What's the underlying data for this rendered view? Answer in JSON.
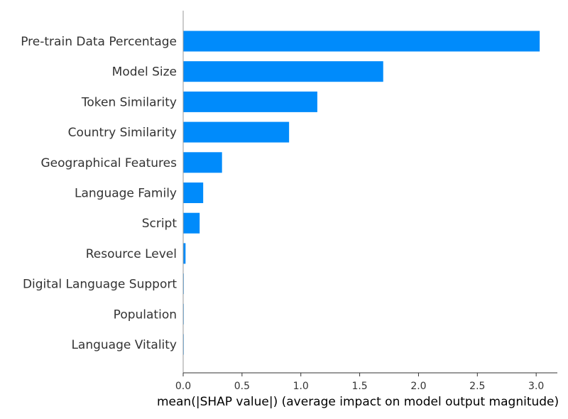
{
  "chart_data": {
    "type": "bar",
    "orientation": "horizontal",
    "categories": [
      "Pre-train Data Percentage",
      "Model Size",
      "Token Similarity",
      "Country Similarity",
      "Geographical Features",
      "Language Family",
      "Script",
      "Resource Level",
      "Digital Language Support",
      "Population",
      "Language Vitality"
    ],
    "values": [
      3.03,
      1.7,
      1.14,
      0.9,
      0.33,
      0.17,
      0.14,
      0.02,
      0.005,
      0.004,
      0.003
    ],
    "xlabel": "mean(|SHAP value|) (average impact on model output magnitude)",
    "ylabel": "",
    "xlim": [
      0,
      3.18
    ],
    "xticks": [
      "0.0",
      "0.5",
      "1.0",
      "1.5",
      "2.0",
      "2.5",
      "3.0"
    ],
    "xtick_values": [
      0,
      0.5,
      1.0,
      1.5,
      2.0,
      2.5,
      3.0
    ],
    "bar_color": "#008bfb",
    "axis_color": "#333333",
    "grid": false,
    "legend": "none"
  }
}
